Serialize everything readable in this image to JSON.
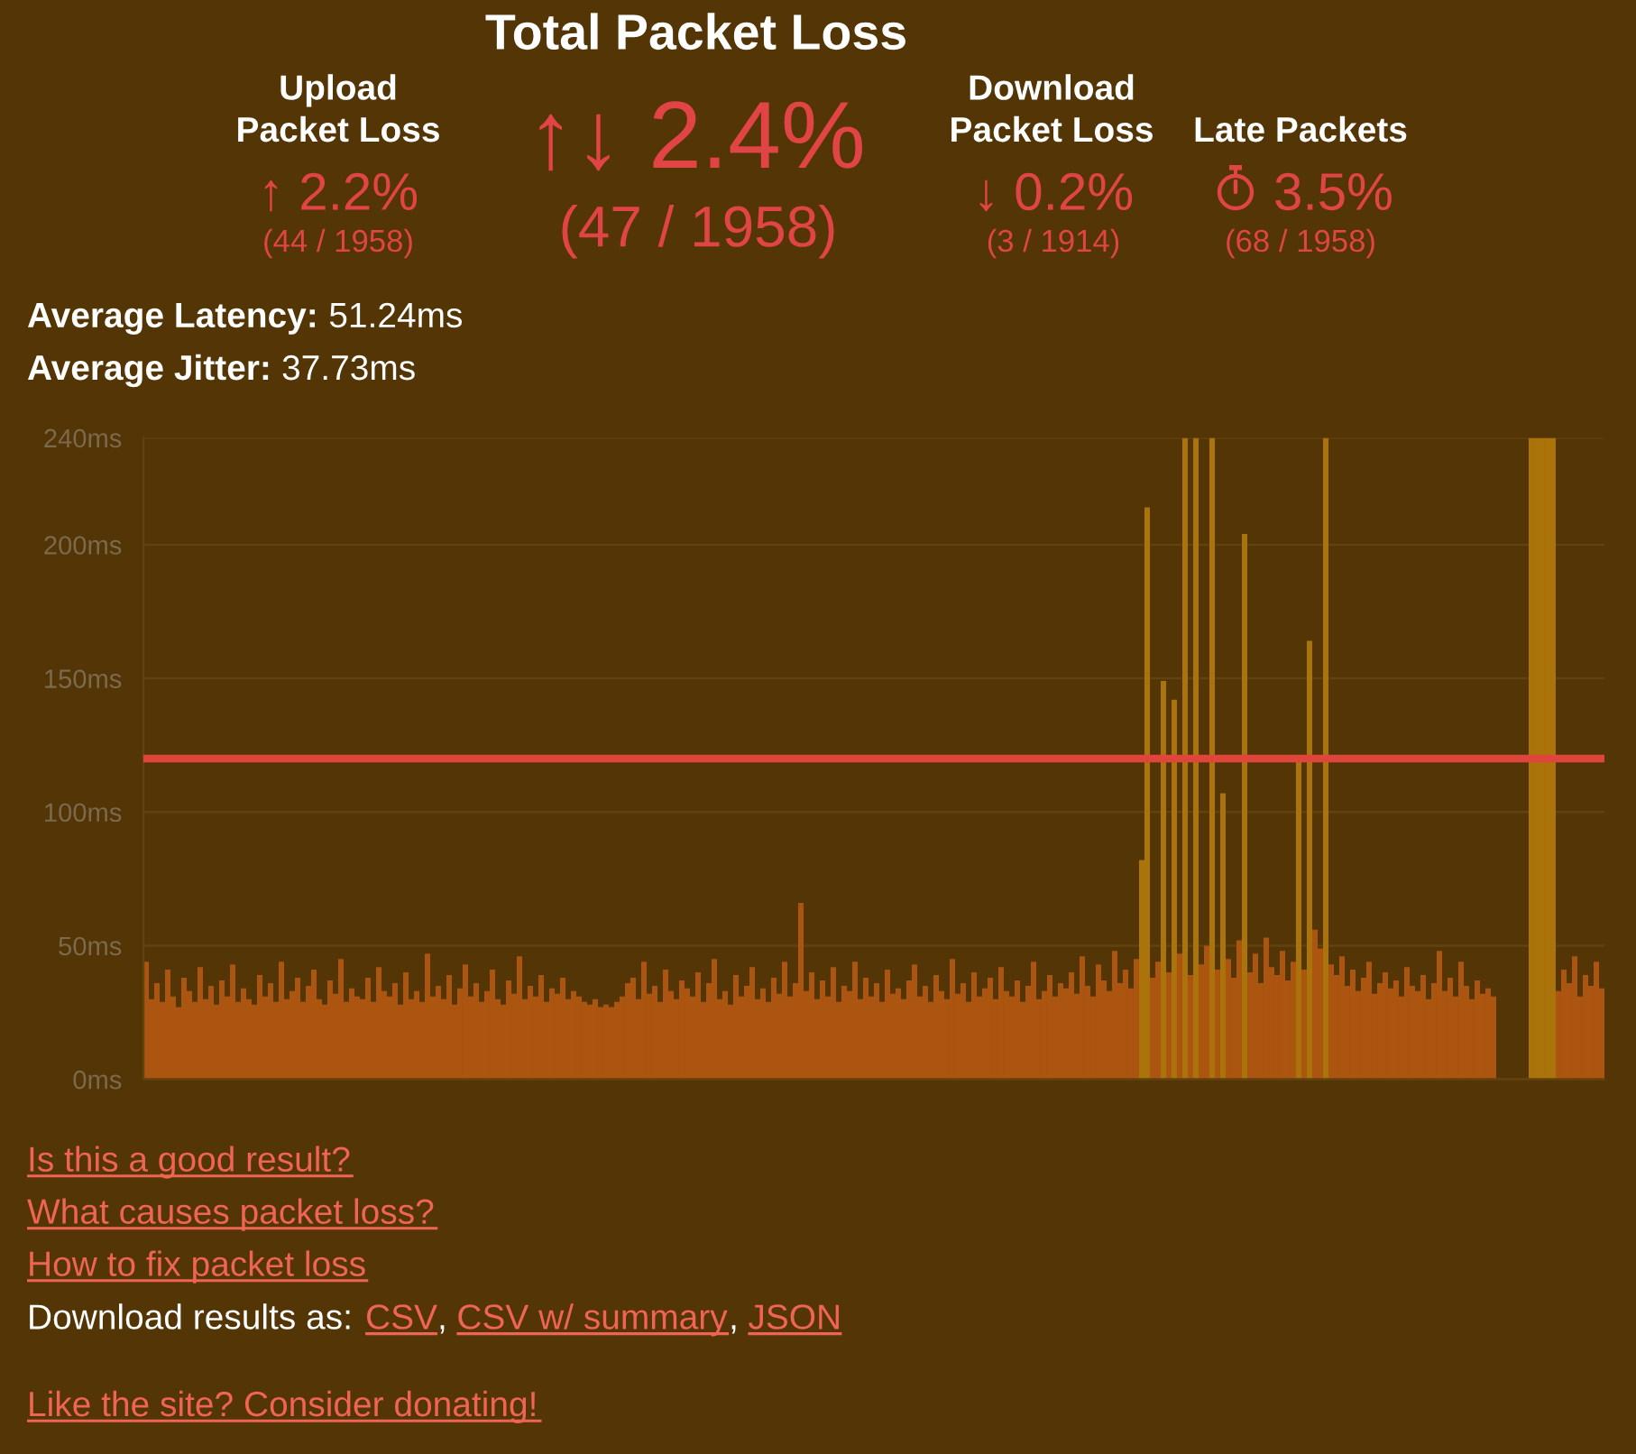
{
  "chart_data": [
    {
      "type": "other",
      "title": "Total Packet Loss",
      "annotations": [
        "Upload\nPacket Loss",
        "↑ 2.2%",
        "(44 / 1958)",
        "↑↓ 2.4%",
        "(47 / 1958)",
        "Download\nPacket Loss",
        "↓ 0.2%",
        "(3 / 1914)",
        "Late Packets",
        "3.5%",
        "(68 / 1958)",
        "Average Latency:",
        "51.24ms",
        "Average Jitter:",
        "37.73ms"
      ]
    },
    {
      "type": "bar",
      "categories": [
        null,
        null,
        null,
        null,
        null,
        null,
        null,
        null,
        null,
        null,
        null,
        null,
        null,
        null,
        null,
        null,
        null,
        null,
        null,
        null,
        null,
        null,
        null,
        null,
        null,
        null,
        null,
        null,
        null,
        null,
        null,
        null,
        null,
        null,
        null,
        null,
        null,
        null,
        null,
        null,
        null,
        null,
        null,
        null,
        null,
        null,
        null,
        null,
        null,
        null,
        null,
        null,
        null,
        null,
        null,
        null,
        null,
        null,
        null,
        null,
        null,
        null,
        null,
        null,
        null,
        null,
        null,
        null,
        null,
        null,
        null,
        null,
        null,
        null,
        null,
        null,
        null,
        null,
        null,
        null,
        null,
        null,
        null,
        null,
        null,
        null,
        null,
        null,
        null,
        null,
        null,
        null,
        null,
        null,
        null,
        null,
        null,
        null,
        null,
        null,
        null,
        null,
        null,
        null,
        null,
        null,
        null,
        null,
        null,
        null,
        null,
        null,
        null,
        null,
        null,
        null,
        null,
        null,
        null,
        null,
        null,
        null,
        null,
        null,
        null,
        null,
        null,
        null,
        null,
        null,
        null,
        null,
        null,
        null,
        null,
        null,
        null,
        null,
        null,
        null,
        null,
        null,
        null,
        null,
        null,
        null,
        null,
        null,
        null,
        null,
        null,
        null,
        null,
        null,
        null,
        null,
        null,
        null,
        null,
        null,
        null,
        null,
        null,
        null,
        null,
        null,
        null,
        null,
        null,
        null,
        null,
        null,
        null,
        null,
        null,
        null,
        null,
        null,
        null,
        null,
        null,
        null,
        null,
        null,
        null,
        null,
        null,
        null,
        null,
        null,
        null,
        null,
        null,
        null,
        null,
        null,
        null,
        null,
        null,
        null,
        null,
        null,
        null,
        null,
        null,
        null,
        null,
        null,
        null,
        null,
        null,
        null,
        null,
        null,
        null,
        null,
        null,
        null,
        null,
        null,
        null,
        null,
        null,
        null,
        null,
        null,
        null,
        null,
        null,
        null,
        null,
        null,
        null,
        null,
        null,
        null,
        null,
        null,
        null,
        null,
        null,
        null,
        null,
        null,
        null,
        null,
        null,
        null,
        null,
        null,
        null,
        null,
        null,
        null,
        null,
        null,
        null,
        null,
        null,
        null,
        null,
        null,
        null,
        null,
        null,
        null,
        null,
        null,
        null,
        null
      ],
      "values": [
        44,
        30,
        36,
        29,
        41,
        31,
        27,
        38,
        33,
        29,
        42,
        30,
        35,
        28,
        37,
        31,
        43,
        29,
        34,
        30,
        28,
        39,
        31,
        36,
        29,
        44,
        30,
        33,
        38,
        29,
        35,
        41,
        30,
        28,
        37,
        32,
        45,
        29,
        34,
        31,
        30,
        38,
        29,
        42,
        33,
        31,
        36,
        28,
        40,
        30,
        33,
        29,
        47,
        31,
        35,
        30,
        39,
        28,
        34,
        43,
        31,
        36,
        29,
        33,
        41,
        30,
        28,
        37,
        32,
        46,
        30,
        35,
        31,
        39,
        29,
        34,
        32,
        38,
        30,
        33,
        31,
        29,
        28,
        30,
        27,
        28,
        27,
        29,
        31,
        36,
        38,
        30,
        44,
        32,
        35,
        29,
        41,
        33,
        30,
        37,
        34,
        31,
        40,
        29,
        36,
        45,
        30,
        33,
        28,
        39,
        31,
        35,
        42,
        30,
        34,
        29,
        38,
        32,
        44,
        31,
        36,
        66,
        33,
        40,
        30,
        37,
        31,
        42,
        29,
        35,
        33,
        44,
        30,
        38,
        31,
        36,
        29,
        41,
        32,
        34,
        30,
        37,
        43,
        31,
        35,
        29,
        39,
        33,
        30,
        45,
        32,
        36,
        29,
        40,
        31,
        34,
        38,
        30,
        42,
        33,
        31,
        37,
        29,
        35,
        44,
        30,
        33,
        39,
        31,
        36,
        34,
        40,
        32,
        46,
        35,
        31,
        43,
        37,
        33,
        48,
        36,
        41,
        34,
        45,
        82,
        214,
        38,
        44,
        149,
        40,
        142,
        47,
        240,
        39,
        240,
        43,
        50,
        240,
        41,
        107,
        45,
        38,
        52,
        204,
        40,
        47,
        36,
        53,
        42,
        39,
        48,
        37,
        44,
        120,
        41,
        164,
        56,
        49,
        240,
        43,
        39,
        46,
        35,
        41,
        33,
        38,
        44,
        32,
        36,
        40,
        34,
        37,
        31,
        42,
        35,
        33,
        39,
        30,
        36,
        48,
        33,
        38,
        31,
        44,
        35,
        30,
        37,
        32,
        34,
        31,
        null,
        null,
        null,
        null,
        null,
        null,
        240,
        240,
        240,
        240,
        240,
        33,
        41,
        36,
        46,
        31,
        39,
        35,
        44,
        34
      ],
      "colors": [
        "#ab5510",
        "#ab5510",
        "#ab5510",
        "#ab5510",
        "#ab5510",
        "#ab5510",
        "#ab5510",
        "#ab5510",
        "#ab5510",
        "#ab5510",
        "#ab5510",
        "#ab5510",
        "#ab5510",
        "#ab5510",
        "#ab5510",
        "#ab5510",
        "#ab5510",
        "#ab5510",
        "#ab5510",
        "#ab5510",
        "#ab5510",
        "#ab5510",
        "#ab5510",
        "#ab5510",
        "#ab5510",
        "#ab5510",
        "#ab5510",
        "#ab5510",
        "#ab5510",
        "#ab5510",
        "#ab5510",
        "#ab5510",
        "#ab5510",
        "#ab5510",
        "#ab5510",
        "#ab5510",
        "#ab5510",
        "#ab5510",
        "#ab5510",
        "#ab5510",
        "#ab5510",
        "#ab5510",
        "#ab5510",
        "#ab5510",
        "#ab5510",
        "#ab5510",
        "#ab5510",
        "#ab5510",
        "#ab5510",
        "#ab5510",
        "#ab5510",
        "#ab5510",
        "#ab5510",
        "#ab5510",
        "#ab5510",
        "#ab5510",
        "#ab5510",
        "#ab5510",
        "#ab5510",
        "#ab5510",
        "#ab5510",
        "#ab5510",
        "#ab5510",
        "#ab5510",
        "#ab5510",
        "#ab5510",
        "#ab5510",
        "#ab5510",
        "#ab5510",
        "#ab5510",
        "#ab5510",
        "#ab5510",
        "#ab5510",
        "#ab5510",
        "#ab5510",
        "#ab5510",
        "#ab5510",
        "#ab5510",
        "#ab5510",
        "#ab5510",
        "#ab5510",
        "#ab5510",
        "#ab5510",
        "#ab5510",
        "#ab5510",
        "#ab5510",
        "#ab5510",
        "#ab5510",
        "#ab5510",
        "#ab5510",
        "#ab5510",
        "#ab5510",
        "#ab5510",
        "#ab5510",
        "#ab5510",
        "#ab5510",
        "#ab5510",
        "#ab5510",
        "#ab5510",
        "#ab5510",
        "#ab5510",
        "#ab5510",
        "#ab5510",
        "#ab5510",
        "#ab5510",
        "#ab5510",
        "#ab5510",
        "#ab5510",
        "#ab5510",
        "#ab5510",
        "#ab5510",
        "#ab5510",
        "#ab5510",
        "#ab5510",
        "#ab5510",
        "#ab5510",
        "#ab5510",
        "#ab5510",
        "#ab5510",
        "#ab5510",
        "#ab5510",
        "#ab5510",
        "#ab5510",
        "#ab5510",
        "#ab5510",
        "#ab5510",
        "#ab5510",
        "#ab5510",
        "#ab5510",
        "#ab5510",
        "#ab5510",
        "#ab5510",
        "#ab5510",
        "#ab5510",
        "#ab5510",
        "#ab5510",
        "#ab5510",
        "#ab5510",
        "#ab5510",
        "#ab5510",
        "#ab5510",
        "#ab5510",
        "#ab5510",
        "#ab5510",
        "#ab5510",
        "#ab5510",
        "#ab5510",
        "#ab5510",
        "#ab5510",
        "#ab5510",
        "#ab5510",
        "#ab5510",
        "#ab5510",
        "#ab5510",
        "#ab5510",
        "#ab5510",
        "#ab5510",
        "#ab5510",
        "#ab5510",
        "#ab5510",
        "#ab5510",
        "#ab5510",
        "#ab5510",
        "#ab5510",
        "#ab5510",
        "#ab5510",
        "#ab5510",
        "#ab5510",
        "#ab5510",
        "#ab5510",
        "#ab5510",
        "#ab5510",
        "#ab5510",
        "#ab5510",
        "#ab5510",
        "#ab5510",
        "#ab5510",
        "#ab5510",
        "#ab5510",
        "#ab5510",
        "#ab5510",
        "#ab5510",
        "#ab5510",
        "#ab5510",
        "#aa740a",
        "#aa740a",
        "#ab5510",
        "#ab5510",
        "#aa740a",
        "#ab5510",
        "#aa740a",
        "#ab5510",
        "#aa740a",
        "#ab5510",
        "#aa740a",
        "#ab5510",
        "#ab5510",
        "#aa740a",
        "#ab5510",
        "#aa740a",
        "#ab5510",
        "#ab5510",
        "#ab5510",
        "#aa740a",
        "#ab5510",
        "#ab5510",
        "#ab5510",
        "#ab5510",
        "#ab5510",
        "#ab5510",
        "#ab5510",
        "#ab5510",
        "#ab5510",
        "#aa740a",
        "#ab5510",
        "#aa740a",
        "#ab5510",
        "#ab5510",
        "#aa740a",
        "#ab5510",
        "#ab5510",
        "#ab5510",
        "#ab5510",
        "#ab5510",
        "#ab5510",
        "#ab5510",
        "#ab5510",
        "#ab5510",
        "#ab5510",
        "#ab5510",
        "#ab5510",
        "#ab5510",
        "#ab5510",
        "#ab5510",
        "#ab5510",
        "#ab5510",
        "#ab5510",
        "#ab5510",
        "#ab5510",
        "#ab5510",
        "#ab5510",
        "#ab5510",
        "#ab5510",
        "#ab5510",
        "#ab5510",
        "#ab5510",
        "#ab5510",
        "#ab5510",
        "#ab5510",
        "#ab5510",
        "#ab5510",
        "#ab5510",
        "#ab5510",
        "#ab5510",
        "#ab5510",
        "#ab5510",
        "#aa740a",
        "#aa740a",
        "#aa740a",
        "#aa740a",
        "#aa740a",
        "#ab5510",
        "#ab5510",
        "#ab5510",
        "#ab5510",
        "#ab5510",
        "#ab5510",
        "#ab5510",
        "#ab5510",
        "#ab5510"
      ],
      "ylim": [
        0,
        240
      ],
      "yticks": [
        {
          "value": 0,
          "label": "0ms"
        },
        {
          "value": 50,
          "label": "50ms"
        },
        {
          "value": 100,
          "label": "100ms"
        },
        {
          "value": 150,
          "label": "150ms"
        },
        {
          "value": 200,
          "label": "200ms"
        },
        {
          "value": 240,
          "label": "240ms"
        }
      ],
      "grid": "y",
      "ref_lines": [
        {
          "axis": "y",
          "value": 120,
          "color": "#e0453c"
        }
      ]
    },
    {
      "type": "other",
      "annotations": [
        "Is this a good result?",
        "What causes packet loss?",
        "How to fix packet loss",
        "Download results as:",
        "CSV",
        ",",
        "CSV w/ summary",
        ",",
        "JSON",
        "Like the site? Consider donating!"
      ]
    }
  ]
}
